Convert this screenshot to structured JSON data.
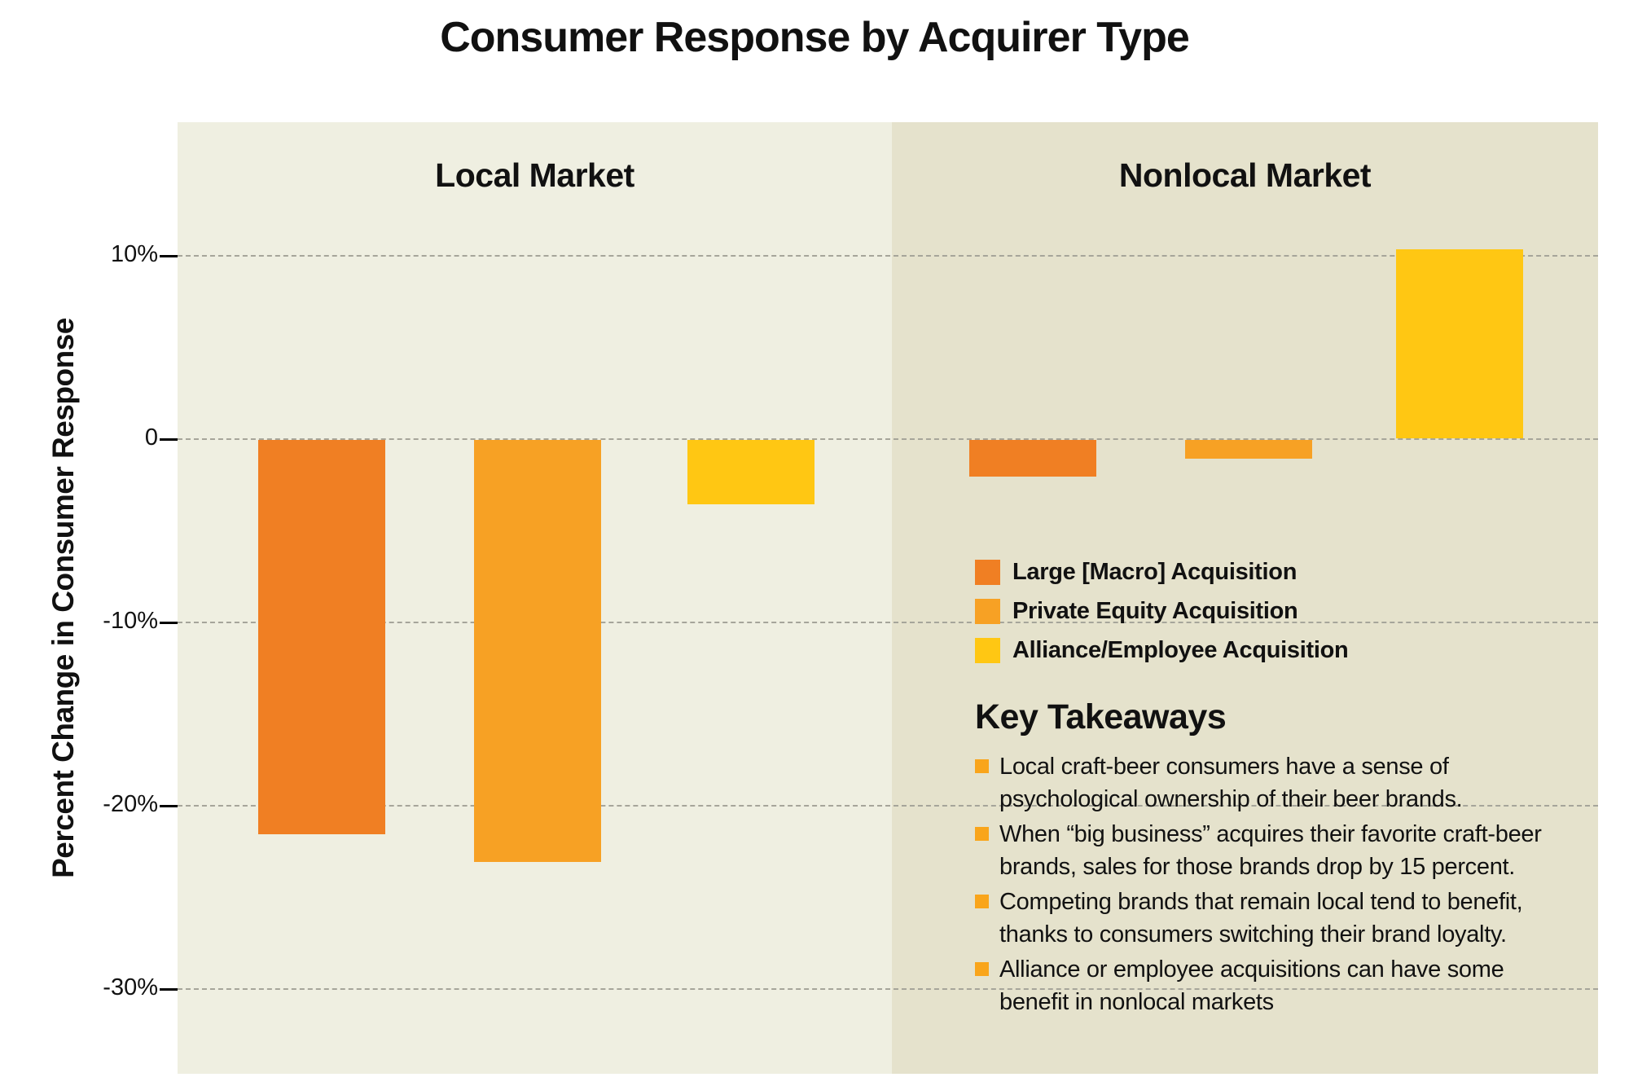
{
  "chart_data": {
    "type": "bar",
    "title": "Consumer Response by Acquirer Type",
    "ylabel": "Percent Change in Consumer Response",
    "ylim": [
      -34,
      17
    ],
    "grid": "dashed horizontal gridlines at each tick, including zero line",
    "legend_position": "inside right panel, upper middle",
    "yticks": [
      {
        "label": "10%",
        "value": 10
      },
      {
        "label": "0",
        "value": 0
      },
      {
        "label": "-10%",
        "value": -10
      },
      {
        "label": "-20%",
        "value": -20
      },
      {
        "label": "-30%",
        "value": -30
      }
    ],
    "panels": [
      {
        "label": "Local Market"
      },
      {
        "label": "Nonlocal Market"
      }
    ],
    "series": [
      {
        "name": "Large [Macro] Acquisition",
        "color": "#F07F23",
        "values": [
          -21.5,
          -2
        ]
      },
      {
        "name": "Private Equity Acquisition",
        "color": "#F7A124",
        "values": [
          -23,
          -1
        ]
      },
      {
        "name": "Alliance/Employee Acquisition",
        "color": "#FFC713",
        "values": [
          -3.5,
          10.3
        ]
      }
    ]
  },
  "colors": {
    "left_panel_bg": "#EFEFE1",
    "right_panel_bg": "#E5E2CC",
    "gridline": "#A6A59A",
    "text": "#111111"
  },
  "takeaways": {
    "title": "Key Takeaways",
    "bullet_color": "#F9A51B",
    "items": [
      "Local craft-beer consumers have a sense of psychological ownership of their beer brands.",
      "When “big business” acquires their favorite craft-beer brands, sales for those brands drop by 15 percent.",
      "Competing brands that remain local tend to benefit, thanks to consumers switching their brand loyalty.",
      "Alliance or employee acquisitions can have some benefit in nonlocal markets"
    ]
  }
}
